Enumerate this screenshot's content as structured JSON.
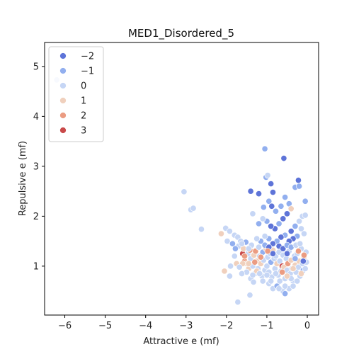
{
  "chart_data": {
    "type": "scatter",
    "title": "MED1_Disordered_5",
    "xlabel": "Attractive e (mf)",
    "ylabel": "Repulsive e (mf)",
    "xlim": [
      -6.5,
      0.28
    ],
    "ylim": [
      0.02,
      5.48
    ],
    "xticks": [
      -6,
      -5,
      -4,
      -3,
      -2,
      -1,
      0
    ],
    "yticks": [
      1,
      2,
      3,
      4,
      5
    ],
    "xtick_labels": [
      "−6",
      "−5",
      "−4",
      "−3",
      "−2",
      "−1",
      "0"
    ],
    "ytick_labels": [
      "1",
      "2",
      "3",
      "4",
      "5"
    ],
    "grid": false,
    "legend": {
      "placement": "upper-left",
      "entries": [
        {
          "label": "−2",
          "value": -2,
          "color": "#5e74d8"
        },
        {
          "label": "−1",
          "value": -1,
          "color": "#92afef"
        },
        {
          "label": "0",
          "value": 0,
          "color": "#c6d6f5"
        },
        {
          "label": "1",
          "value": 1,
          "color": "#f0d0bd"
        },
        {
          "label": "2",
          "value": 2,
          "color": "#eb9c82"
        },
        {
          "label": "3",
          "value": 3,
          "color": "#c94a4a"
        }
      ]
    },
    "points": [
      {
        "x": -6.2,
        "y": 4.73,
        "c": 0
      },
      {
        "x": -3.05,
        "y": 2.49,
        "c": 0
      },
      {
        "x": -2.88,
        "y": 2.13,
        "c": 0
      },
      {
        "x": -2.82,
        "y": 2.16,
        "c": 0
      },
      {
        "x": -2.62,
        "y": 1.74,
        "c": 0
      },
      {
        "x": -2.13,
        "y": 1.65,
        "c": 1
      },
      {
        "x": -2.02,
        "y": 1.76,
        "c": 0
      },
      {
        "x": -1.92,
        "y": 1.7,
        "c": 0
      },
      {
        "x": -1.98,
        "y": 1.5,
        "c": 0
      },
      {
        "x": -1.85,
        "y": 1.45,
        "c": -1
      },
      {
        "x": -1.8,
        "y": 1.62,
        "c": 0
      },
      {
        "x": -1.72,
        "y": 1.58,
        "c": 0
      },
      {
        "x": -1.7,
        "y": 1.4,
        "c": 0
      },
      {
        "x": -1.65,
        "y": 1.5,
        "c": 0
      },
      {
        "x": -1.6,
        "y": 1.25,
        "c": 3
      },
      {
        "x": -1.58,
        "y": 1.35,
        "c": 1
      },
      {
        "x": -1.55,
        "y": 1.1,
        "c": 2
      },
      {
        "x": -1.52,
        "y": 1.48,
        "c": -1
      },
      {
        "x": -1.5,
        "y": 1.05,
        "c": 1
      },
      {
        "x": -1.47,
        "y": 1.25,
        "c": 0
      },
      {
        "x": -1.45,
        "y": 0.95,
        "c": 1
      },
      {
        "x": -1.42,
        "y": 1.32,
        "c": 2
      },
      {
        "x": -1.4,
        "y": 1.15,
        "c": 0
      },
      {
        "x": -1.38,
        "y": 1.42,
        "c": 0
      },
      {
        "x": -1.35,
        "y": 1.0,
        "c": 0
      },
      {
        "x": -1.32,
        "y": 1.22,
        "c": 1
      },
      {
        "x": -1.3,
        "y": 0.85,
        "c": 0
      },
      {
        "x": -1.28,
        "y": 1.3,
        "c": 2
      },
      {
        "x": -1.25,
        "y": 1.1,
        "c": 1
      },
      {
        "x": -1.22,
        "y": 0.95,
        "c": 0
      },
      {
        "x": -1.2,
        "y": 1.38,
        "c": 0
      },
      {
        "x": -1.18,
        "y": 1.2,
        "c": 0
      },
      {
        "x": -1.15,
        "y": 1.05,
        "c": 1
      },
      {
        "x": -1.12,
        "y": 0.8,
        "c": 0
      },
      {
        "x": -1.1,
        "y": 1.28,
        "c": -1
      },
      {
        "x": -1.08,
        "y": 1.12,
        "c": 0
      },
      {
        "x": -1.05,
        "y": 0.92,
        "c": 0
      },
      {
        "x": -1.02,
        "y": 1.35,
        "c": 1
      },
      {
        "x": -1.0,
        "y": 1.0,
        "c": 0
      },
      {
        "x": -0.98,
        "y": 1.18,
        "c": 0
      },
      {
        "x": -0.95,
        "y": 0.88,
        "c": 0
      },
      {
        "x": -0.92,
        "y": 1.25,
        "c": 0
      },
      {
        "x": -0.9,
        "y": 1.08,
        "c": -1
      },
      {
        "x": -0.88,
        "y": 0.78,
        "c": 0
      },
      {
        "x": -0.85,
        "y": 1.32,
        "c": 1
      },
      {
        "x": -0.82,
        "y": 1.15,
        "c": 0
      },
      {
        "x": -0.8,
        "y": 0.95,
        "c": 0
      },
      {
        "x": -0.78,
        "y": 1.2,
        "c": 0
      },
      {
        "x": -0.75,
        "y": 1.05,
        "c": 1
      },
      {
        "x": -0.72,
        "y": 0.82,
        "c": 0
      },
      {
        "x": -0.7,
        "y": 1.28,
        "c": 0
      },
      {
        "x": -0.68,
        "y": 1.1,
        "c": 0
      },
      {
        "x": -0.65,
        "y": 0.9,
        "c": 0
      },
      {
        "x": -0.62,
        "y": 1.0,
        "c": 3
      },
      {
        "x": -0.6,
        "y": 1.22,
        "c": 0
      },
      {
        "x": -0.58,
        "y": 0.98,
        "c": 1
      },
      {
        "x": -0.55,
        "y": 0.75,
        "c": 0
      },
      {
        "x": -0.52,
        "y": 1.15,
        "c": 0
      },
      {
        "x": -0.5,
        "y": 0.92,
        "c": 0
      },
      {
        "x": -0.48,
        "y": 1.05,
        "c": 2
      },
      {
        "x": -0.45,
        "y": 1.3,
        "c": 0
      },
      {
        "x": -0.42,
        "y": 0.85,
        "c": 0
      },
      {
        "x": -0.4,
        "y": 1.12,
        "c": 1
      },
      {
        "x": -0.38,
        "y": 0.95,
        "c": 0
      },
      {
        "x": -0.35,
        "y": 0.7,
        "c": 0
      },
      {
        "x": -0.32,
        "y": 1.2,
        "c": 0
      },
      {
        "x": -0.3,
        "y": 1.02,
        "c": 1
      },
      {
        "x": -0.28,
        "y": 0.88,
        "c": 0
      },
      {
        "x": -0.25,
        "y": 1.25,
        "c": 0
      },
      {
        "x": -0.22,
        "y": 0.98,
        "c": 0
      },
      {
        "x": -0.2,
        "y": 1.1,
        "c": 1
      },
      {
        "x": -0.18,
        "y": 0.8,
        "c": 0
      },
      {
        "x": -0.15,
        "y": 1.35,
        "c": 0
      },
      {
        "x": -0.12,
        "y": 1.05,
        "c": 0
      },
      {
        "x": -0.1,
        "y": 0.92,
        "c": -1
      },
      {
        "x": -0.08,
        "y": 1.18,
        "c": 1
      },
      {
        "x": -0.05,
        "y": 0.95,
        "c": 0
      },
      {
        "x": -0.03,
        "y": 1.28,
        "c": 0
      },
      {
        "x": -0.02,
        "y": 1.08,
        "c": 0
      },
      {
        "x": -1.6,
        "y": 1.05,
        "c": 1
      },
      {
        "x": -1.5,
        "y": 0.88,
        "c": 0
      },
      {
        "x": -1.4,
        "y": 0.75,
        "c": 0
      },
      {
        "x": -1.33,
        "y": 0.68,
        "c": 0
      },
      {
        "x": -1.25,
        "y": 0.9,
        "c": 1
      },
      {
        "x": -1.1,
        "y": 0.7,
        "c": 0
      },
      {
        "x": -0.95,
        "y": 0.65,
        "c": 0
      },
      {
        "x": -0.85,
        "y": 0.55,
        "c": 0
      },
      {
        "x": -0.75,
        "y": 0.6,
        "c": -1
      },
      {
        "x": -0.6,
        "y": 0.5,
        "c": 0
      },
      {
        "x": -0.55,
        "y": 0.45,
        "c": -1
      },
      {
        "x": -0.45,
        "y": 0.55,
        "c": 0
      },
      {
        "x": -0.35,
        "y": 0.6,
        "c": 0
      },
      {
        "x": -0.25,
        "y": 0.7,
        "c": 0
      },
      {
        "x": -1.42,
        "y": 0.42,
        "c": 0
      },
      {
        "x": -1.72,
        "y": 0.28,
        "c": 0
      },
      {
        "x": -1.92,
        "y": 0.8,
        "c": 0
      },
      {
        "x": -2.05,
        "y": 0.9,
        "c": 1
      },
      {
        "x": -1.9,
        "y": 1.0,
        "c": 0
      },
      {
        "x": -1.8,
        "y": 1.2,
        "c": 0
      },
      {
        "x": -1.75,
        "y": 1.05,
        "c": 1
      },
      {
        "x": -1.68,
        "y": 0.98,
        "c": 0
      },
      {
        "x": -1.62,
        "y": 0.85,
        "c": 0
      },
      {
        "x": -1.05,
        "y": 3.35,
        "c": -1
      },
      {
        "x": -0.58,
        "y": 3.16,
        "c": -2
      },
      {
        "x": -1.02,
        "y": 2.78,
        "c": -1
      },
      {
        "x": -0.98,
        "y": 2.82,
        "c": 0
      },
      {
        "x": -0.9,
        "y": 2.65,
        "c": -2
      },
      {
        "x": -0.85,
        "y": 2.48,
        "c": -2
      },
      {
        "x": -0.95,
        "y": 2.3,
        "c": -1
      },
      {
        "x": -1.4,
        "y": 2.5,
        "c": -2
      },
      {
        "x": -1.2,
        "y": 2.45,
        "c": -2
      },
      {
        "x": -0.88,
        "y": 2.2,
        "c": -2
      },
      {
        "x": -1.08,
        "y": 2.18,
        "c": -1
      },
      {
        "x": -0.78,
        "y": 2.1,
        "c": -1
      },
      {
        "x": -0.65,
        "y": 2.2,
        "c": -1
      },
      {
        "x": -0.55,
        "y": 2.38,
        "c": -1
      },
      {
        "x": -0.45,
        "y": 2.25,
        "c": -1
      },
      {
        "x": -0.3,
        "y": 2.58,
        "c": -1
      },
      {
        "x": -0.22,
        "y": 2.72,
        "c": -2
      },
      {
        "x": -0.2,
        "y": 2.6,
        "c": -1
      },
      {
        "x": -0.05,
        "y": 2.3,
        "c": -1
      },
      {
        "x": -0.4,
        "y": 2.15,
        "c": 1
      },
      {
        "x": -0.5,
        "y": 2.05,
        "c": -2
      },
      {
        "x": -0.6,
        "y": 1.95,
        "c": -2
      },
      {
        "x": -0.7,
        "y": 1.85,
        "c": -1
      },
      {
        "x": -0.8,
        "y": 1.75,
        "c": -2
      },
      {
        "x": -0.9,
        "y": 1.8,
        "c": -2
      },
      {
        "x": -1.0,
        "y": 1.9,
        "c": -1
      },
      {
        "x": -1.1,
        "y": 1.95,
        "c": 0
      },
      {
        "x": -1.2,
        "y": 1.85,
        "c": -1
      },
      {
        "x": -1.35,
        "y": 2.05,
        "c": 0
      },
      {
        "x": -0.4,
        "y": 1.7,
        "c": -2
      },
      {
        "x": -0.3,
        "y": 1.8,
        "c": -1
      },
      {
        "x": -0.2,
        "y": 1.9,
        "c": 0
      },
      {
        "x": -0.12,
        "y": 2.0,
        "c": 0
      },
      {
        "x": -0.05,
        "y": 2.02,
        "c": 0
      },
      {
        "x": -0.15,
        "y": 1.75,
        "c": 0
      },
      {
        "x": -0.08,
        "y": 1.65,
        "c": 0
      },
      {
        "x": -0.25,
        "y": 1.6,
        "c": -1
      },
      {
        "x": -0.35,
        "y": 1.55,
        "c": -2
      },
      {
        "x": -0.45,
        "y": 1.5,
        "c": -2
      },
      {
        "x": -0.55,
        "y": 1.62,
        "c": -1
      },
      {
        "x": -0.65,
        "y": 1.58,
        "c": -2
      },
      {
        "x": -0.75,
        "y": 1.5,
        "c": -1
      },
      {
        "x": -0.85,
        "y": 1.45,
        "c": -2
      },
      {
        "x": -0.95,
        "y": 1.55,
        "c": -1
      },
      {
        "x": -1.05,
        "y": 1.6,
        "c": 0
      },
      {
        "x": -1.15,
        "y": 1.5,
        "c": -1
      },
      {
        "x": -1.25,
        "y": 1.55,
        "c": 0
      },
      {
        "x": -0.7,
        "y": 1.4,
        "c": -2
      },
      {
        "x": -0.6,
        "y": 1.35,
        "c": -2
      },
      {
        "x": -0.5,
        "y": 1.42,
        "c": -1
      },
      {
        "x": -0.4,
        "y": 1.38,
        "c": -1
      },
      {
        "x": -0.28,
        "y": 1.42,
        "c": 0
      },
      {
        "x": -0.18,
        "y": 1.45,
        "c": 0
      },
      {
        "x": -1.05,
        "y": 1.42,
        "c": -1
      },
      {
        "x": -0.95,
        "y": 1.38,
        "c": -2
      },
      {
        "x": -0.5,
        "y": 1.25,
        "c": -2
      },
      {
        "x": -0.1,
        "y": 1.1,
        "c": -2
      },
      {
        "x": -0.3,
        "y": 1.15,
        "c": -1
      },
      {
        "x": -0.85,
        "y": 1.25,
        "c": -2
      },
      {
        "x": -1.45,
        "y": 1.35,
        "c": 0
      },
      {
        "x": -1.62,
        "y": 1.45,
        "c": 0
      },
      {
        "x": -1.78,
        "y": 1.35,
        "c": -1
      },
      {
        "x": -0.68,
        "y": 0.7,
        "c": 0
      },
      {
        "x": -0.78,
        "y": 0.85,
        "c": 0
      },
      {
        "x": -0.9,
        "y": 0.7,
        "c": 0
      },
      {
        "x": -1.0,
        "y": 0.82,
        "c": 0
      },
      {
        "x": -1.18,
        "y": 0.85,
        "c": 0
      },
      {
        "x": -1.35,
        "y": 0.82,
        "c": 0
      },
      {
        "x": -0.15,
        "y": 0.85,
        "c": 1
      },
      {
        "x": -0.4,
        "y": 0.75,
        "c": 0
      },
      {
        "x": -0.55,
        "y": 0.6,
        "c": 0
      },
      {
        "x": -0.7,
        "y": 0.55,
        "c": 0
      },
      {
        "x": -0.5,
        "y": 0.8,
        "c": 1
      },
      {
        "x": -0.62,
        "y": 0.88,
        "c": 2
      },
      {
        "x": -1.15,
        "y": 1.18,
        "c": 2
      },
      {
        "x": -1.3,
        "y": 1.08,
        "c": 2
      },
      {
        "x": -1.55,
        "y": 1.2,
        "c": 2
      },
      {
        "x": -1.45,
        "y": 1.05,
        "c": 1
      },
      {
        "x": -0.98,
        "y": 1.3,
        "c": 2
      },
      {
        "x": -0.22,
        "y": 1.3,
        "c": 2
      },
      {
        "x": -0.35,
        "y": 0.95,
        "c": 1
      },
      {
        "x": -0.08,
        "y": 1.22,
        "c": 2
      }
    ]
  }
}
